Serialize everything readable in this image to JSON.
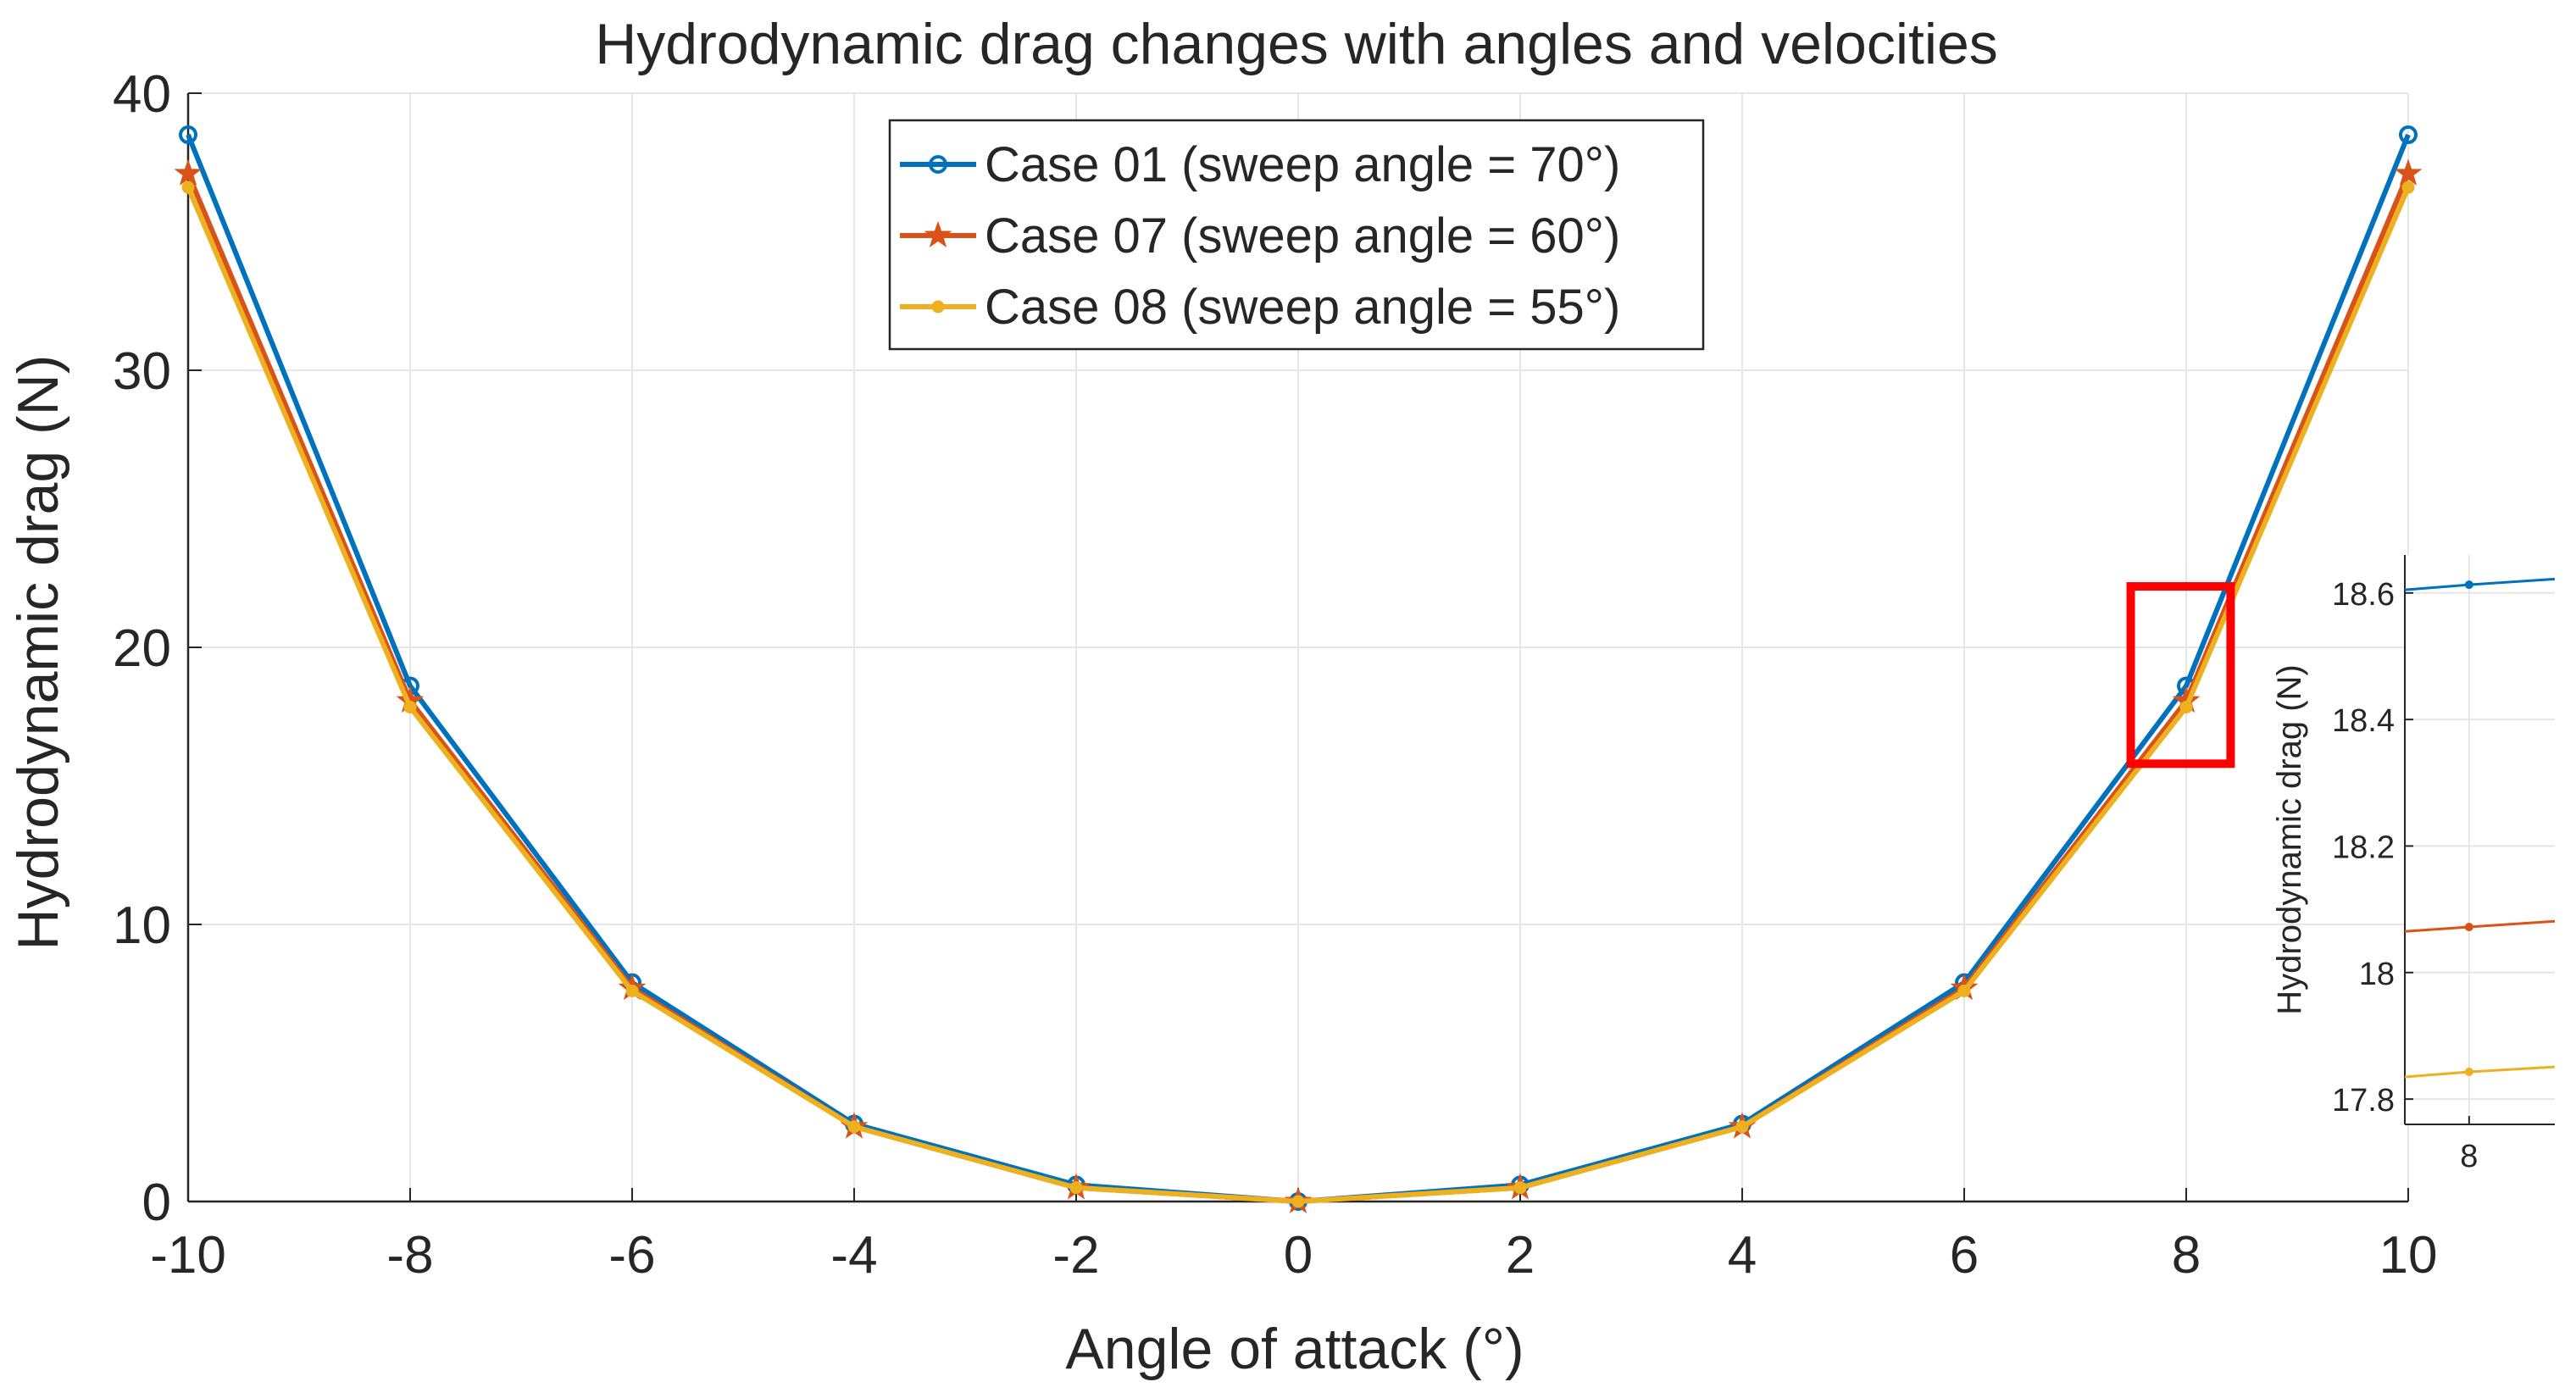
{
  "chart_data": {
    "type": "line",
    "title": "Hydrodynamic drag changes with angles and velocities",
    "xlabel": "Angle of attack (°)",
    "ylabel": "Hydrodynamic drag (N)",
    "xlim": [
      -10,
      10
    ],
    "ylim": [
      0,
      40
    ],
    "xticks": [
      -10,
      -8,
      -6,
      -4,
      -2,
      0,
      2,
      4,
      6,
      8,
      10
    ],
    "yticks": [
      0,
      10,
      20,
      30,
      40
    ],
    "grid": true,
    "legend_position": "top-center",
    "x": [
      -10,
      -8,
      -6,
      -4,
      -2,
      0,
      2,
      4,
      6,
      8,
      10
    ],
    "series": [
      {
        "name": "Case 01 (sweep angle = 70°)",
        "color": "#0072bd",
        "marker": "circle",
        "values": [
          38.5,
          18.61,
          7.9,
          2.8,
          0.6,
          0.0,
          0.6,
          2.8,
          7.9,
          18.61,
          38.5
        ]
      },
      {
        "name": "Case 07 (sweep angle = 60°)",
        "color": "#d95319",
        "marker": "star",
        "values": [
          37.1,
          18.07,
          7.7,
          2.7,
          0.5,
          0.0,
          0.5,
          2.7,
          7.7,
          18.07,
          37.1
        ]
      },
      {
        "name": "Case 08 (sweep angle = 55°)",
        "color": "#edb120",
        "marker": "dot",
        "values": [
          36.6,
          17.84,
          7.6,
          2.7,
          0.5,
          0.0,
          0.5,
          2.7,
          7.6,
          17.84,
          36.6
        ]
      }
    ],
    "highlight_box": {
      "x_range": [
        7.5,
        8.4
      ],
      "y_range": [
        15.8,
        22.2
      ],
      "color": "#ff0000"
    },
    "inset": {
      "ylabel": "Hydrodynamic drag (N)",
      "xlim": [
        7.85,
        8.2
      ],
      "ylim": [
        17.76,
        18.66
      ],
      "xticks": [
        8
      ],
      "yticks": [
        17.8,
        18,
        18.2,
        18.4,
        18.6
      ],
      "ytick_labels": [
        "17.8",
        "18",
        "18.2",
        "18.4",
        "18.6"
      ],
      "series": [
        {
          "color": "#0072bd",
          "x": [
            7.85,
            8.0,
            8.2
          ],
          "values": [
            18.605,
            18.613,
            18.622
          ]
        },
        {
          "color": "#d95319",
          "x": [
            7.85,
            8.0,
            8.2
          ],
          "values": [
            18.065,
            18.072,
            18.081
          ]
        },
        {
          "color": "#edb120",
          "x": [
            7.85,
            8.0,
            8.2
          ],
          "values": [
            17.835,
            17.843,
            17.851
          ]
        }
      ]
    }
  }
}
